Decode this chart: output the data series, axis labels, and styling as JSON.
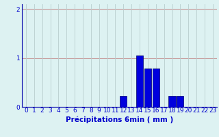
{
  "xlabel": "Précipitations 6min ( mm )",
  "xlim": [
    -0.5,
    23.5
  ],
  "ylim": [
    0,
    2.1
  ],
  "yticks": [
    0,
    1,
    2
  ],
  "xticks": [
    0,
    1,
    2,
    3,
    4,
    5,
    6,
    7,
    8,
    9,
    10,
    11,
    12,
    13,
    14,
    15,
    16,
    17,
    18,
    19,
    20,
    21,
    22,
    23
  ],
  "bar_data": {
    "12": 0.22,
    "14": 1.05,
    "15": 0.78,
    "16": 0.78,
    "18": 0.22,
    "19": 0.22
  },
  "bar_color": "#0000dd",
  "bar_edge_color": "#000066",
  "background_color": "#ddf2f2",
  "grid_color_h": "#c8a0a0",
  "grid_color_v": "#b8cece",
  "axis_color": "#0000aa",
  "tick_color": "#0000cc",
  "label_color": "#0000cc",
  "label_fontsize": 7.5,
  "tick_fontsize": 6.5
}
